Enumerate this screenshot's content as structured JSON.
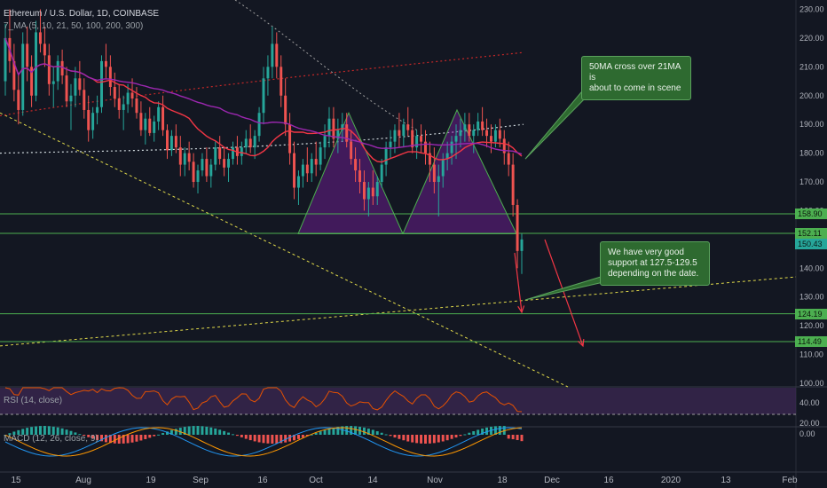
{
  "header": {
    "symbol": "Ethereum / U.S. Dollar, 1D, COINBASE",
    "ma_label": "7_MA (5, 10, 21, 50, 100, 200, 300)",
    "rsi_label": "RSI (14, close)",
    "macd_label": "MACD (12, 26, close, 9)"
  },
  "annotations": {
    "ma_cross": [
      "50MA cross over 21MA is",
      "about to come in scene"
    ],
    "support": [
      "We have very good",
      "support at 127.5-129.5",
      "depending on the date."
    ]
  },
  "colors": {
    "background": "#131722",
    "up": "#26a69a",
    "down": "#ef5350",
    "support_line": "#4caf50",
    "pattern_fill": "#7b1fa2",
    "ma21": "#f23645",
    "ma50": "#9c27b0",
    "trend_dashed": "#e0d94a",
    "note_bg": "#2e6a30",
    "arrow": "#f23645"
  },
  "chart_data": {
    "type": "candlestick",
    "title": "Ethereum / U.S. Dollar, 1D, COINBASE",
    "x_tick_labels": [
      "15",
      "Aug",
      "19",
      "Sep",
      "16",
      "Oct",
      "14",
      "Nov",
      "18",
      "Dec",
      "16",
      "2020",
      "13",
      "Feb"
    ],
    "y_tick_labels": [
      "230.00",
      "220.00",
      "210.00",
      "200.00",
      "190.00",
      "180.00",
      "170.00",
      "160.00",
      "150.00",
      "140.00",
      "130.00",
      "120.00",
      "110.00",
      "100.00"
    ],
    "ylim": [
      100,
      232
    ],
    "horizontal_levels": [
      {
        "label": "158.90",
        "value": 158.9
      },
      {
        "label": "152.11",
        "value": 152.11
      },
      {
        "label": "124.19",
        "value": 124.19
      },
      {
        "label": "114.49",
        "value": 114.49
      }
    ],
    "last_price": {
      "label": "150.43",
      "value": 150.43
    },
    "candles": [
      [
        205,
        225,
        200,
        220
      ],
      [
        220,
        230,
        208,
        212
      ],
      [
        212,
        218,
        198,
        202
      ],
      [
        202,
        208,
        190,
        195
      ],
      [
        195,
        222,
        193,
        218
      ],
      [
        218,
        224,
        205,
        210
      ],
      [
        210,
        214,
        196,
        200
      ],
      [
        200,
        226,
        198,
        222
      ],
      [
        222,
        230,
        215,
        218
      ],
      [
        218,
        224,
        210,
        214
      ],
      [
        214,
        218,
        200,
        204
      ],
      [
        204,
        210,
        196,
        205
      ],
      [
        205,
        214,
        202,
        212
      ],
      [
        212,
        216,
        204,
        207
      ],
      [
        207,
        210,
        196,
        198
      ],
      [
        198,
        204,
        188,
        200
      ],
      [
        200,
        210,
        196,
        206
      ],
      [
        206,
        212,
        200,
        202
      ],
      [
        202,
        206,
        192,
        195
      ],
      [
        195,
        200,
        184,
        188
      ],
      [
        188,
        196,
        185,
        194
      ],
      [
        194,
        200,
        190,
        196
      ],
      [
        196,
        214,
        194,
        212
      ],
      [
        212,
        218,
        206,
        210
      ],
      [
        210,
        214,
        200,
        203
      ],
      [
        203,
        208,
        196,
        199
      ],
      [
        199,
        204,
        192,
        195
      ],
      [
        195,
        200,
        188,
        197
      ],
      [
        197,
        204,
        194,
        201
      ],
      [
        201,
        206,
        196,
        199
      ],
      [
        199,
        203,
        192,
        194
      ],
      [
        194,
        198,
        186,
        188
      ],
      [
        188,
        194,
        183,
        192
      ],
      [
        192,
        196,
        186,
        187
      ],
      [
        187,
        193,
        184,
        191
      ],
      [
        191,
        198,
        188,
        196
      ],
      [
        196,
        200,
        186,
        188
      ],
      [
        188,
        190,
        178,
        181
      ],
      [
        181,
        188,
        179,
        186
      ],
      [
        186,
        190,
        180,
        182
      ],
      [
        182,
        186,
        172,
        176
      ],
      [
        176,
        182,
        172,
        180
      ],
      [
        180,
        184,
        174,
        177
      ],
      [
        177,
        180,
        168,
        170
      ],
      [
        170,
        176,
        166,
        174
      ],
      [
        174,
        180,
        172,
        178
      ],
      [
        178,
        182,
        170,
        172
      ],
      [
        172,
        178,
        168,
        176
      ],
      [
        176,
        184,
        174,
        182
      ],
      [
        182,
        186,
        176,
        178
      ],
      [
        178,
        182,
        172,
        175
      ],
      [
        175,
        180,
        170,
        178
      ],
      [
        178,
        184,
        176,
        182
      ],
      [
        182,
        186,
        176,
        179
      ],
      [
        179,
        184,
        176,
        182
      ],
      [
        182,
        188,
        180,
        185
      ],
      [
        185,
        190,
        180,
        182
      ],
      [
        182,
        188,
        178,
        186
      ],
      [
        186,
        196,
        184,
        194
      ],
      [
        194,
        210,
        190,
        206
      ],
      [
        206,
        214,
        200,
        210
      ],
      [
        210,
        224,
        206,
        218
      ],
      [
        218,
        222,
        206,
        210
      ],
      [
        210,
        214,
        196,
        200
      ],
      [
        200,
        206,
        186,
        190
      ],
      [
        190,
        194,
        176,
        180
      ],
      [
        180,
        184,
        164,
        168
      ],
      [
        168,
        174,
        162,
        172
      ],
      [
        172,
        178,
        168,
        176
      ],
      [
        176,
        182,
        170,
        173
      ],
      [
        173,
        180,
        170,
        178
      ],
      [
        178,
        184,
        172,
        176
      ],
      [
        176,
        184,
        174,
        182
      ],
      [
        182,
        190,
        178,
        186
      ],
      [
        186,
        196,
        182,
        192
      ],
      [
        192,
        196,
        182,
        185
      ],
      [
        185,
        192,
        180,
        188
      ],
      [
        188,
        194,
        184,
        190
      ],
      [
        190,
        194,
        182,
        184
      ],
      [
        184,
        188,
        176,
        178
      ],
      [
        178,
        182,
        170,
        174
      ],
      [
        174,
        178,
        166,
        170
      ],
      [
        170,
        174,
        160,
        164
      ],
      [
        164,
        170,
        158,
        168
      ],
      [
        168,
        174,
        162,
        165
      ],
      [
        165,
        172,
        162,
        170
      ],
      [
        170,
        178,
        168,
        176
      ],
      [
        176,
        184,
        172,
        182
      ],
      [
        182,
        188,
        178,
        184
      ],
      [
        184,
        190,
        180,
        188
      ],
      [
        188,
        194,
        182,
        186
      ],
      [
        186,
        192,
        182,
        190
      ],
      [
        190,
        196,
        186,
        188
      ],
      [
        188,
        192,
        180,
        182
      ],
      [
        182,
        188,
        178,
        186
      ],
      [
        186,
        190,
        180,
        184
      ],
      [
        184,
        188,
        176,
        180
      ],
      [
        180,
        184,
        170,
        176
      ],
      [
        176,
        182,
        166,
        170
      ],
      [
        170,
        176,
        158,
        172
      ],
      [
        172,
        180,
        168,
        178
      ],
      [
        178,
        184,
        174,
        180
      ],
      [
        180,
        186,
        176,
        184
      ],
      [
        184,
        190,
        178,
        186
      ],
      [
        186,
        192,
        182,
        188
      ],
      [
        188,
        194,
        184,
        190
      ],
      [
        190,
        194,
        184,
        186
      ],
      [
        186,
        190,
        180,
        188
      ],
      [
        188,
        194,
        186,
        191
      ],
      [
        191,
        196,
        186,
        188
      ],
      [
        188,
        192,
        182,
        186
      ],
      [
        186,
        190,
        180,
        184
      ],
      [
        184,
        190,
        182,
        188
      ],
      [
        188,
        192,
        182,
        185
      ],
      [
        185,
        188,
        176,
        180
      ],
      [
        180,
        184,
        172,
        176
      ],
      [
        176,
        180,
        158,
        162
      ],
      [
        162,
        164,
        140,
        146
      ],
      [
        146,
        152,
        138,
        150
      ]
    ],
    "rsi_axis_labels": [
      "40.00",
      "20.00"
    ],
    "macd_axis_labels": [
      "0.00"
    ],
    "rsi_levels": [
      70,
      30
    ]
  }
}
